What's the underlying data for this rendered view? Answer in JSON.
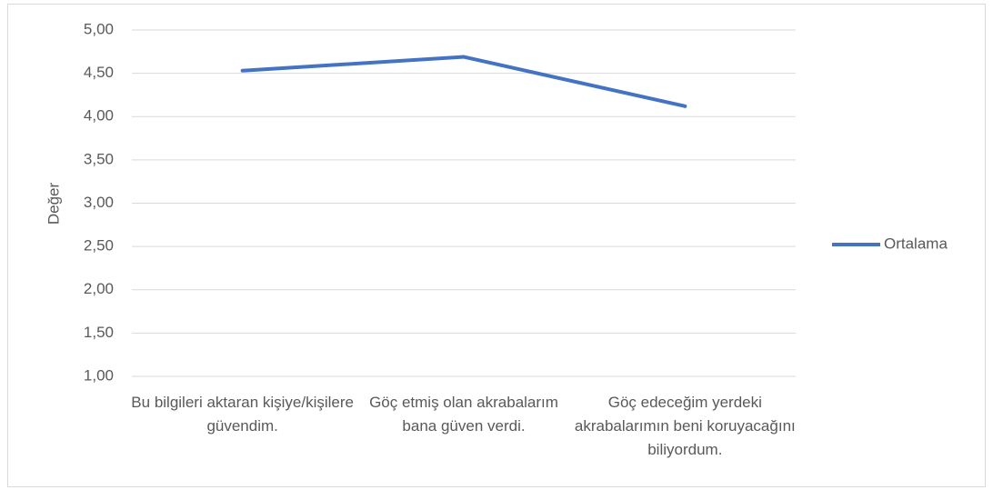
{
  "chart_data": {
    "type": "line",
    "y_label": "Değer",
    "categories": [
      "Bu bilgileri aktaran kişiye/kişilere güvendim.",
      "Göç etmiş olan akrabalarım bana güven verdi.",
      "Göç edeceğim yerdeki akrabalarımın beni koruyacağını biliyordum."
    ],
    "series": [
      {
        "name": "Ortalama",
        "color": "#4472c4",
        "values": [
          4.53,
          4.69,
          4.12
        ]
      }
    ],
    "ylim": [
      1,
      5
    ],
    "yticks": [
      {
        "value": 1,
        "label": "1,00"
      },
      {
        "value": 1.5,
        "label": "1,50"
      },
      {
        "value": 2,
        "label": "2,00"
      },
      {
        "value": 2.5,
        "label": "2,50"
      },
      {
        "value": 3,
        "label": "3,00"
      },
      {
        "value": 3.5,
        "label": "3,50"
      },
      {
        "value": 4,
        "label": "4,00"
      },
      {
        "value": 4.5,
        "label": "4,50"
      },
      {
        "value": 5,
        "label": "5,00"
      }
    ],
    "grid": true,
    "legend": "right"
  }
}
